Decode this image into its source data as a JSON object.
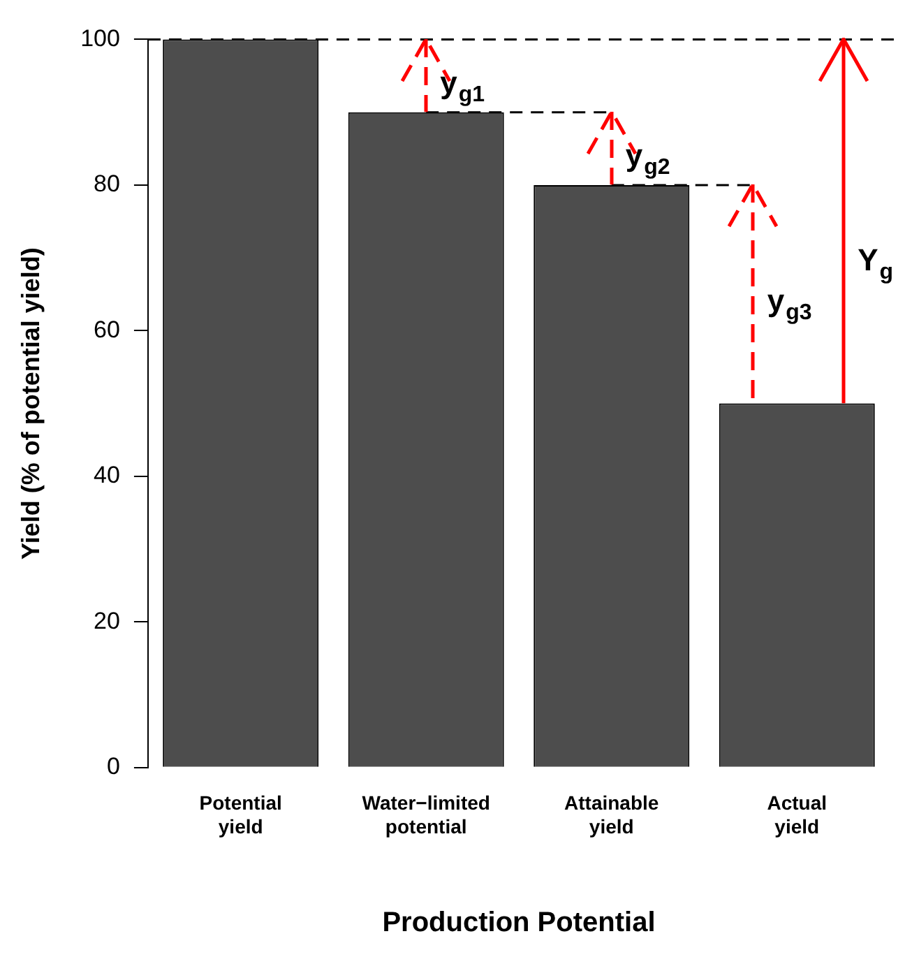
{
  "chart_data": {
    "type": "bar",
    "xlabel": "Production Potential",
    "ylabel": "Yield (% of potential yield)",
    "categories": [
      "Potential yield",
      "Water−limited potential",
      "Attainable yield",
      "Actual yield"
    ],
    "values": [
      100,
      90,
      80,
      50
    ],
    "color": "#4d4d4d",
    "ylim": [
      0,
      100
    ],
    "yticks": [
      0,
      20,
      40,
      60,
      80,
      100
    ],
    "grid": false,
    "legend": false,
    "ref_lines": [
      {
        "axis": "y",
        "value": 100,
        "color": "#000000",
        "line_style": "dashed"
      },
      {
        "axis": "y",
        "value": 90,
        "color": "#000000",
        "line_style": "dashed"
      },
      {
        "axis": "y",
        "value": 80,
        "color": "#000000",
        "line_style": "dashed"
      }
    ],
    "annotations": [
      "y$_{g1}$",
      "y$_{g2}$",
      "y$_{g3}$",
      "Y$_{g}$"
    ]
  }
}
